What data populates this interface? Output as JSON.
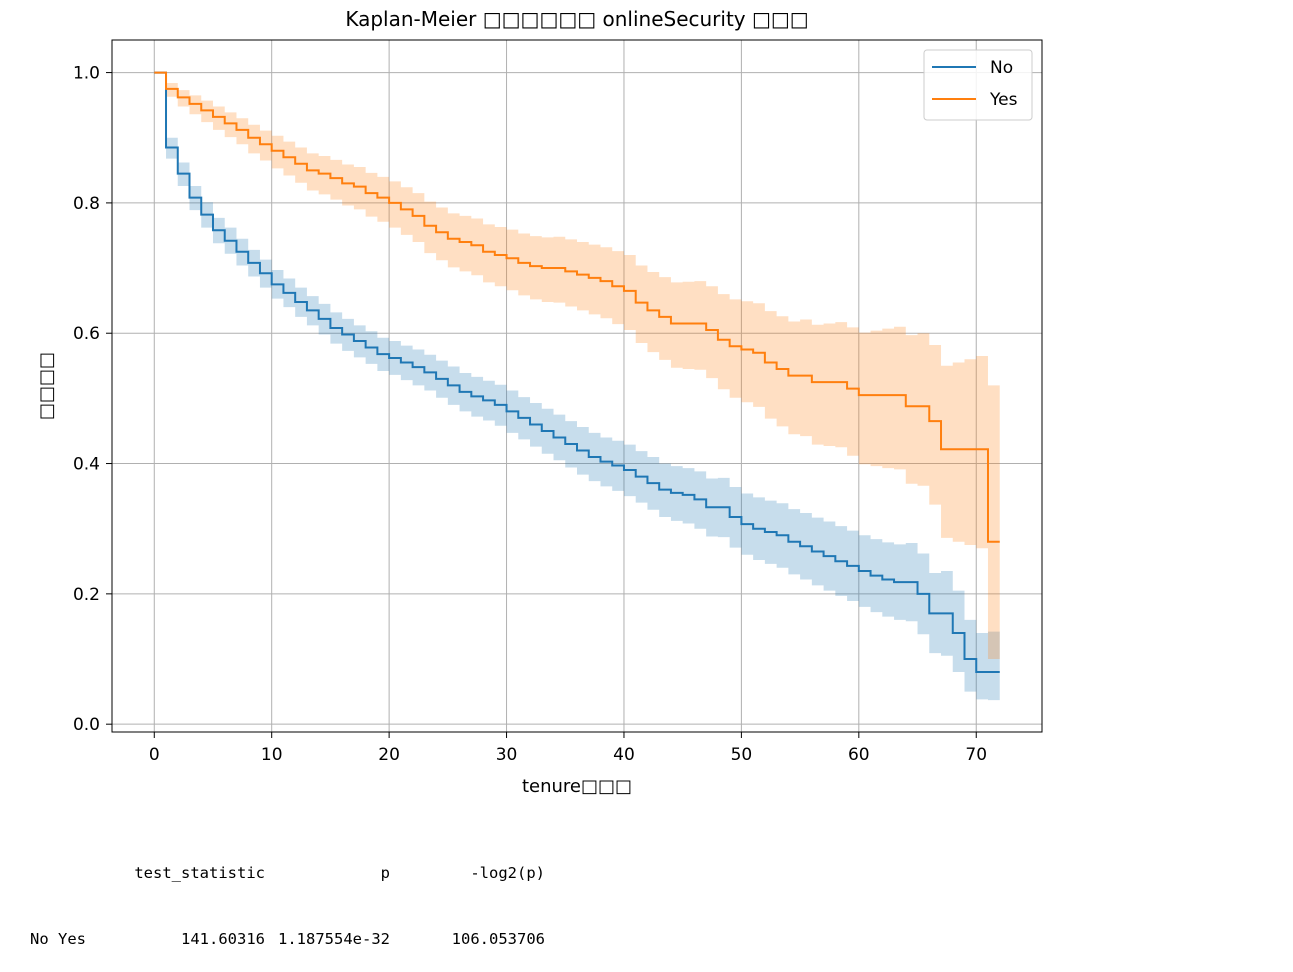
{
  "chart_data": {
    "type": "line",
    "title": "Kaplan-Meier □□□□□□ onlineSecurity □□□",
    "xlabel": "tenure□□□",
    "ylabel": "□□□□",
    "xlim": [
      -3.6,
      75.6
    ],
    "ylim": [
      -0.012,
      1.05
    ],
    "xticks": [
      "0",
      "10",
      "20",
      "30",
      "40",
      "50",
      "60",
      "70"
    ],
    "yticks": [
      "0.0",
      "0.2",
      "0.4",
      "0.6",
      "0.8",
      "1.0"
    ],
    "grid": true,
    "legend_position": "top-right",
    "step": true,
    "series": [
      {
        "name": "No",
        "color": "#1f77b4",
        "x": [
          0,
          1,
          2,
          3,
          4,
          5,
          6,
          7,
          8,
          9,
          10,
          11,
          12,
          13,
          14,
          15,
          16,
          17,
          18,
          19,
          20,
          21,
          22,
          23,
          24,
          25,
          26,
          27,
          28,
          29,
          30,
          31,
          32,
          33,
          34,
          35,
          36,
          37,
          38,
          39,
          40,
          41,
          42,
          43,
          44,
          45,
          46,
          47,
          48,
          49,
          50,
          51,
          52,
          53,
          54,
          55,
          56,
          57,
          58,
          59,
          60,
          61,
          62,
          63,
          64,
          65,
          66,
          67,
          68,
          69,
          70,
          71,
          72
        ],
        "y": [
          1.0,
          0.885,
          0.845,
          0.808,
          0.782,
          0.758,
          0.742,
          0.725,
          0.708,
          0.692,
          0.675,
          0.662,
          0.648,
          0.635,
          0.622,
          0.608,
          0.598,
          0.588,
          0.578,
          0.568,
          0.562,
          0.555,
          0.548,
          0.54,
          0.53,
          0.52,
          0.51,
          0.503,
          0.497,
          0.49,
          0.48,
          0.47,
          0.46,
          0.45,
          0.44,
          0.43,
          0.42,
          0.41,
          0.403,
          0.397,
          0.39,
          0.38,
          0.37,
          0.36,
          0.355,
          0.352,
          0.345,
          0.333,
          0.333,
          0.318,
          0.307,
          0.3,
          0.295,
          0.29,
          0.28,
          0.273,
          0.265,
          0.258,
          0.25,
          0.243,
          0.235,
          0.228,
          0.222,
          0.218,
          0.218,
          0.2,
          0.17,
          0.17,
          0.14,
          0.1,
          0.08,
          0.08,
          0.08
        ],
        "ci_lower": [
          1.0,
          0.868,
          0.826,
          0.789,
          0.762,
          0.738,
          0.722,
          0.704,
          0.687,
          0.67,
          0.653,
          0.64,
          0.625,
          0.612,
          0.598,
          0.584,
          0.573,
          0.563,
          0.553,
          0.542,
          0.536,
          0.528,
          0.52,
          0.512,
          0.501,
          0.49,
          0.48,
          0.472,
          0.466,
          0.458,
          0.447,
          0.437,
          0.426,
          0.415,
          0.405,
          0.394,
          0.383,
          0.373,
          0.365,
          0.358,
          0.35,
          0.34,
          0.329,
          0.318,
          0.312,
          0.308,
          0.3,
          0.288,
          0.287,
          0.271,
          0.26,
          0.252,
          0.246,
          0.24,
          0.23,
          0.222,
          0.213,
          0.205,
          0.197,
          0.189,
          0.18,
          0.172,
          0.165,
          0.16,
          0.158,
          0.138,
          0.109,
          0.105,
          0.08,
          0.05,
          0.038,
          0.037,
          0.037
        ],
        "ci_upper": [
          1.0,
          0.9,
          0.862,
          0.826,
          0.801,
          0.777,
          0.762,
          0.745,
          0.728,
          0.713,
          0.697,
          0.684,
          0.67,
          0.657,
          0.645,
          0.632,
          0.622,
          0.612,
          0.603,
          0.593,
          0.588,
          0.581,
          0.575,
          0.567,
          0.558,
          0.549,
          0.539,
          0.533,
          0.527,
          0.521,
          0.512,
          0.502,
          0.493,
          0.484,
          0.475,
          0.465,
          0.456,
          0.447,
          0.44,
          0.435,
          0.429,
          0.419,
          0.41,
          0.4,
          0.396,
          0.393,
          0.388,
          0.377,
          0.378,
          0.364,
          0.354,
          0.348,
          0.343,
          0.339,
          0.33,
          0.324,
          0.317,
          0.311,
          0.304,
          0.297,
          0.29,
          0.284,
          0.279,
          0.276,
          0.278,
          0.262,
          0.232,
          0.235,
          0.205,
          0.16,
          0.14,
          0.142,
          0.142
        ]
      },
      {
        "name": "Yes",
        "color": "#ff7f0e",
        "x": [
          0,
          1,
          2,
          3,
          4,
          5,
          6,
          7,
          8,
          9,
          10,
          11,
          12,
          13,
          14,
          15,
          16,
          17,
          18,
          19,
          20,
          21,
          22,
          23,
          24,
          25,
          26,
          27,
          28,
          29,
          30,
          31,
          32,
          33,
          34,
          35,
          36,
          37,
          38,
          39,
          40,
          41,
          42,
          43,
          44,
          45,
          46,
          47,
          48,
          49,
          50,
          51,
          52,
          53,
          54,
          55,
          56,
          57,
          58,
          59,
          60,
          61,
          62,
          63,
          64,
          65,
          66,
          67,
          68,
          69,
          70,
          71,
          72
        ],
        "y": [
          1.0,
          0.975,
          0.962,
          0.952,
          0.942,
          0.932,
          0.922,
          0.912,
          0.9,
          0.89,
          0.88,
          0.87,
          0.86,
          0.85,
          0.845,
          0.838,
          0.83,
          0.825,
          0.815,
          0.808,
          0.8,
          0.79,
          0.78,
          0.765,
          0.755,
          0.745,
          0.74,
          0.735,
          0.725,
          0.72,
          0.715,
          0.708,
          0.703,
          0.7,
          0.7,
          0.695,
          0.69,
          0.685,
          0.68,
          0.672,
          0.665,
          0.647,
          0.635,
          0.625,
          0.615,
          0.615,
          0.615,
          0.605,
          0.59,
          0.58,
          0.575,
          0.57,
          0.555,
          0.545,
          0.535,
          0.535,
          0.525,
          0.525,
          0.525,
          0.515,
          0.505,
          0.505,
          0.505,
          0.505,
          0.488,
          0.488,
          0.465,
          0.422,
          0.422,
          0.422,
          0.422,
          0.28,
          0.28
        ],
        "ci_lower": [
          1.0,
          0.963,
          0.948,
          0.936,
          0.924,
          0.912,
          0.901,
          0.89,
          0.876,
          0.865,
          0.853,
          0.842,
          0.831,
          0.819,
          0.813,
          0.805,
          0.796,
          0.79,
          0.779,
          0.771,
          0.762,
          0.751,
          0.74,
          0.723,
          0.712,
          0.701,
          0.695,
          0.689,
          0.678,
          0.672,
          0.666,
          0.658,
          0.652,
          0.648,
          0.647,
          0.641,
          0.635,
          0.629,
          0.623,
          0.614,
          0.605,
          0.585,
          0.571,
          0.559,
          0.547,
          0.545,
          0.544,
          0.531,
          0.514,
          0.501,
          0.494,
          0.487,
          0.469,
          0.457,
          0.445,
          0.442,
          0.429,
          0.427,
          0.425,
          0.412,
          0.399,
          0.396,
          0.393,
          0.391,
          0.369,
          0.366,
          0.337,
          0.286,
          0.28,
          0.275,
          0.27,
          0.1,
          0.1
        ],
        "ci_upper": [
          1.0,
          0.984,
          0.973,
          0.965,
          0.957,
          0.948,
          0.939,
          0.93,
          0.92,
          0.911,
          0.903,
          0.894,
          0.885,
          0.876,
          0.872,
          0.866,
          0.859,
          0.855,
          0.846,
          0.84,
          0.833,
          0.824,
          0.815,
          0.802,
          0.793,
          0.784,
          0.78,
          0.776,
          0.767,
          0.763,
          0.759,
          0.753,
          0.749,
          0.747,
          0.748,
          0.744,
          0.74,
          0.736,
          0.732,
          0.726,
          0.72,
          0.704,
          0.694,
          0.686,
          0.678,
          0.679,
          0.68,
          0.672,
          0.66,
          0.652,
          0.649,
          0.646,
          0.634,
          0.626,
          0.618,
          0.621,
          0.613,
          0.615,
          0.617,
          0.609,
          0.601,
          0.604,
          0.607,
          0.61,
          0.597,
          0.6,
          0.582,
          0.55,
          0.555,
          0.56,
          0.565,
          0.52,
          0.52
        ]
      }
    ]
  },
  "stats_table": {
    "header": [
      "",
      "test_statistic",
      "p",
      "-log2(p)"
    ],
    "rows": [
      [
        "No Yes",
        "141.60316",
        "1.187554e-32",
        "106.053706"
      ]
    ]
  }
}
